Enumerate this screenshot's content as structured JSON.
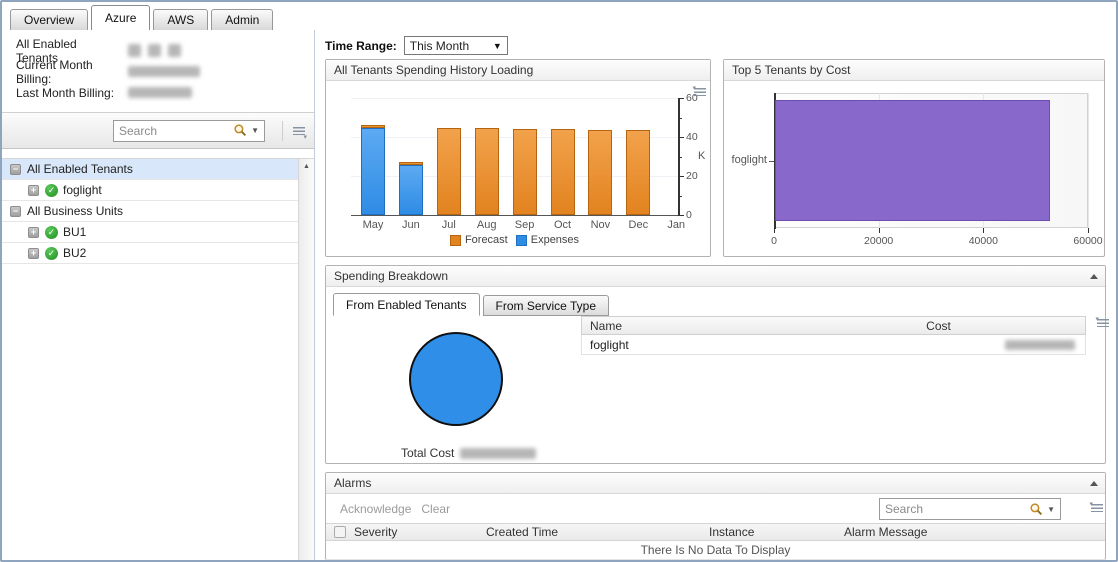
{
  "tabs": {
    "items": [
      {
        "label": "Overview",
        "active": false
      },
      {
        "label": "Azure",
        "active": true
      },
      {
        "label": "AWS",
        "active": false
      },
      {
        "label": "Admin",
        "active": false
      }
    ]
  },
  "sidebar": {
    "summary": {
      "tenants_label": "All Enabled Tenants",
      "tenants_value_redacted": true,
      "current_billing_label": "Current Month Billing:",
      "current_billing_value_redacted": true,
      "last_billing_label": "Last Month Billing:",
      "last_billing_value_redacted": true
    },
    "search_placeholder": "Search",
    "tree": [
      {
        "label": "All Enabled Tenants",
        "type": "group",
        "expanded": true,
        "selected": true
      },
      {
        "label": "foglight",
        "type": "leaf",
        "status": "ok"
      },
      {
        "label": "All Business Units",
        "type": "group",
        "expanded": true,
        "selected": false
      },
      {
        "label": "BU1",
        "type": "leaf",
        "status": "ok"
      },
      {
        "label": "BU2",
        "type": "leaf",
        "status": "ok"
      }
    ]
  },
  "toolbar": {
    "time_range_label": "Time Range:",
    "time_range_value": "This Month"
  },
  "panels": {
    "spending_history": {
      "title": "All Tenants Spending History Loading"
    },
    "top5": {
      "title": "Top 5 Tenants by Cost"
    },
    "breakdown": {
      "title": "Spending Breakdown",
      "tabs": [
        {
          "label": "From Enabled Tenants",
          "active": true
        },
        {
          "label": "From Service Type",
          "active": false
        }
      ],
      "total_cost_label": "Total Cost",
      "total_cost_value_redacted": true,
      "table": {
        "columns": [
          "Name",
          "Cost"
        ],
        "rows": [
          {
            "name": "foglight",
            "cost_redacted": true
          }
        ]
      }
    },
    "alarms": {
      "title": "Alarms",
      "actions": [
        "Acknowledge",
        "Clear"
      ],
      "search_placeholder": "Search",
      "columns": [
        "Severity",
        "Created Time",
        "Instance",
        "Alarm Message"
      ],
      "empty_message": "There Is No Data To Display"
    }
  },
  "chart_data": [
    {
      "id": "spending_history",
      "type": "bar",
      "stacked": true,
      "categories": [
        "May",
        "Jun",
        "Jul",
        "Aug",
        "Sep",
        "Oct",
        "Nov",
        "Dec",
        "Jan"
      ],
      "series": [
        {
          "name": "Expenses",
          "color": "#2f8ce4",
          "color_light": "#5caaf2",
          "border": "#1f6fc2",
          "values": [
            44.5,
            25.5,
            0,
            0,
            0,
            0,
            0,
            0,
            0
          ]
        },
        {
          "name": "Forecast",
          "color": "#e2831f",
          "color_light": "#f2a24c",
          "border": "#b5650f",
          "values": [
            1.5,
            1.5,
            44.5,
            44.5,
            44,
            44,
            43.5,
            43.5,
            0
          ]
        }
      ],
      "ylabel": "K",
      "ylim": [
        0,
        60
      ],
      "yticks": [
        0,
        20,
        40,
        60
      ],
      "yticks_minor": [
        10,
        30,
        50
      ],
      "legend": [
        "Forecast",
        "Expenses"
      ],
      "legend_position": "bottom",
      "y_axis_side": "right",
      "grid": true
    },
    {
      "id": "top5",
      "type": "bar-horizontal",
      "categories": [
        "foglight"
      ],
      "values": [
        52500
      ],
      "color": "#8968cc",
      "border": "#6b4eb0",
      "xlim": [
        0,
        60000
      ],
      "xticks": [
        0,
        20000,
        40000,
        60000
      ],
      "grid": true
    },
    {
      "id": "breakdown_pie",
      "type": "pie",
      "slices": [
        {
          "label": "foglight",
          "value": 100,
          "color": "#2f8fe8"
        }
      ]
    }
  ]
}
